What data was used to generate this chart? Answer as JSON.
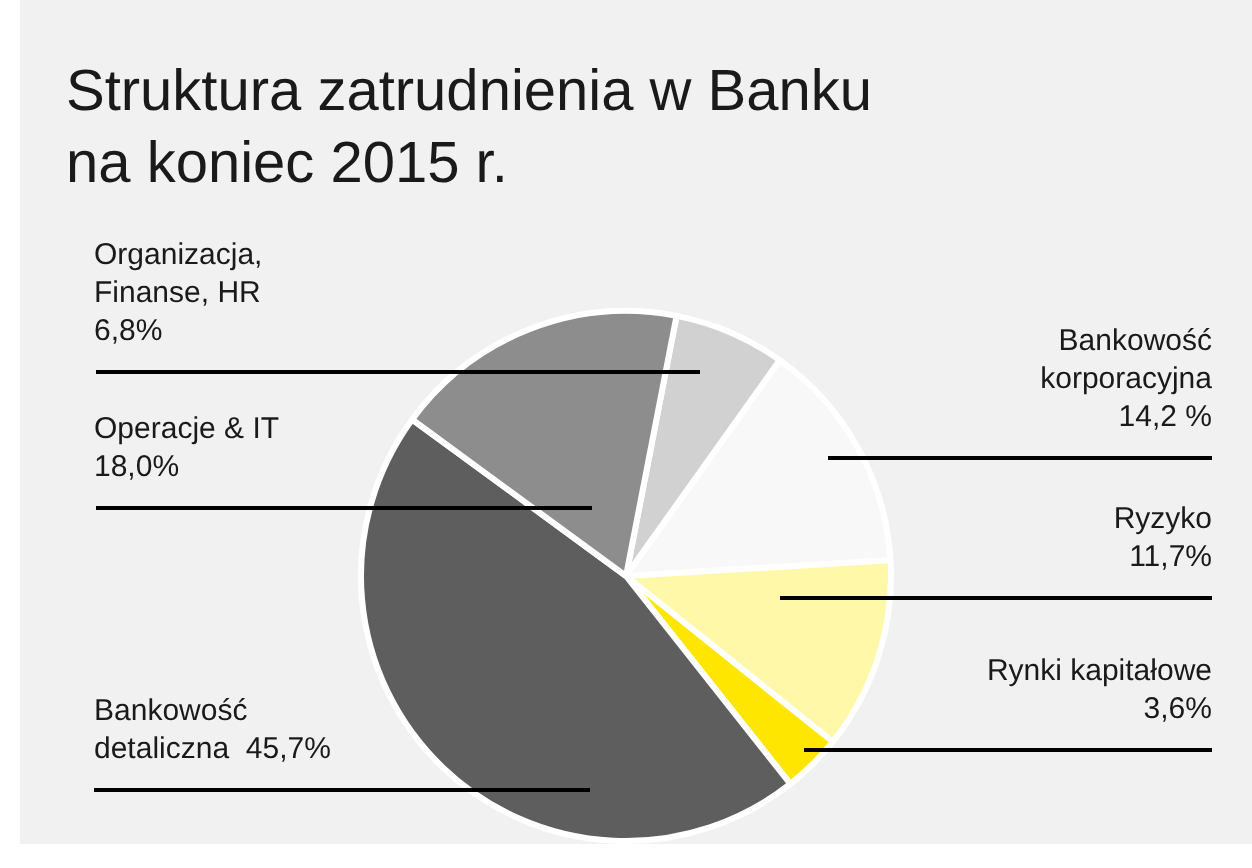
{
  "chart_data": {
    "type": "pie",
    "title": "Struktura zatrudnienia w Banku na koniec 2015 r.",
    "categories": [
      "Organizacja, Finanse, HR",
      "Bankowość korporacyjna",
      "Ryzyko",
      "Rynki kapitałowe",
      "Bankowość detaliczna",
      "Operacje & IT"
    ],
    "values": [
      6.8,
      14.2,
      11.7,
      3.6,
      45.7,
      18.0
    ],
    "value_labels": [
      "6,8%",
      "14,2 %",
      "11,7%",
      "3,6%",
      "45,7%",
      "18,0%"
    ],
    "colors": [
      "#d1d1d1",
      "#f8f8f8",
      "#fff8a8",
      "#ffe600",
      "#5e5e5e",
      "#8d8d8d"
    ],
    "legend": false
  }
}
